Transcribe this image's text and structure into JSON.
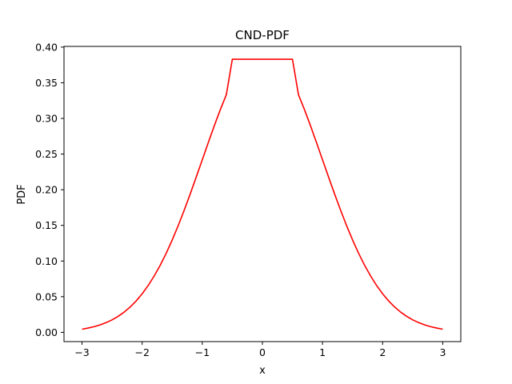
{
  "chart_data": {
    "type": "line",
    "title": "CND-PDF",
    "xlabel": "x",
    "ylabel": "PDF",
    "xlim": [
      -3.3,
      3.3
    ],
    "ylim": [
      -0.013,
      0.401
    ],
    "x_ticks": [
      -3,
      -2,
      -1,
      0,
      1,
      2,
      3
    ],
    "x_tick_labels": [
      "−3",
      "−2",
      "−1",
      "0",
      "1",
      "2",
      "3"
    ],
    "y_ticks": [
      0.0,
      0.05,
      0.1,
      0.15,
      0.2,
      0.25,
      0.3,
      0.35,
      0.4
    ],
    "y_tick_labels": [
      "0.00",
      "0.05",
      "0.10",
      "0.15",
      "0.20",
      "0.25",
      "0.30",
      "0.35",
      "0.40"
    ],
    "grid": false,
    "series": [
      {
        "color": "#ff0000",
        "x": [
          -3.0,
          -2.9,
          -2.8,
          -2.7,
          -2.6,
          -2.5,
          -2.4,
          -2.3,
          -2.2,
          -2.1,
          -2.0,
          -1.9,
          -1.8,
          -1.7,
          -1.6,
          -1.5,
          -1.4,
          -1.3,
          -1.2,
          -1.1,
          -1.0,
          -0.9,
          -0.8,
          -0.7,
          -0.6,
          -0.5,
          0.0,
          0.5,
          0.6,
          0.7,
          0.8,
          0.9,
          1.0,
          1.1,
          1.2,
          1.3,
          1.4,
          1.5,
          1.6,
          1.7,
          1.8,
          1.9,
          2.0,
          2.1,
          2.2,
          2.3,
          2.4,
          2.5,
          2.6,
          2.7,
          2.8,
          2.9,
          3.0
        ],
        "y": [
          0.0044,
          0.006,
          0.0079,
          0.0104,
          0.0136,
          0.0175,
          0.0224,
          0.0283,
          0.0355,
          0.044,
          0.054,
          0.0656,
          0.079,
          0.094,
          0.1109,
          0.1295,
          0.1497,
          0.1714,
          0.1942,
          0.2179,
          0.242,
          0.2661,
          0.2897,
          0.3123,
          0.3332,
          0.383,
          0.383,
          0.383,
          0.3332,
          0.3123,
          0.2897,
          0.2661,
          0.242,
          0.2179,
          0.1942,
          0.1714,
          0.1497,
          0.1295,
          0.1109,
          0.094,
          0.079,
          0.0656,
          0.054,
          0.044,
          0.0355,
          0.0283,
          0.0224,
          0.0175,
          0.0136,
          0.0104,
          0.0079,
          0.006,
          0.0044
        ]
      }
    ]
  }
}
